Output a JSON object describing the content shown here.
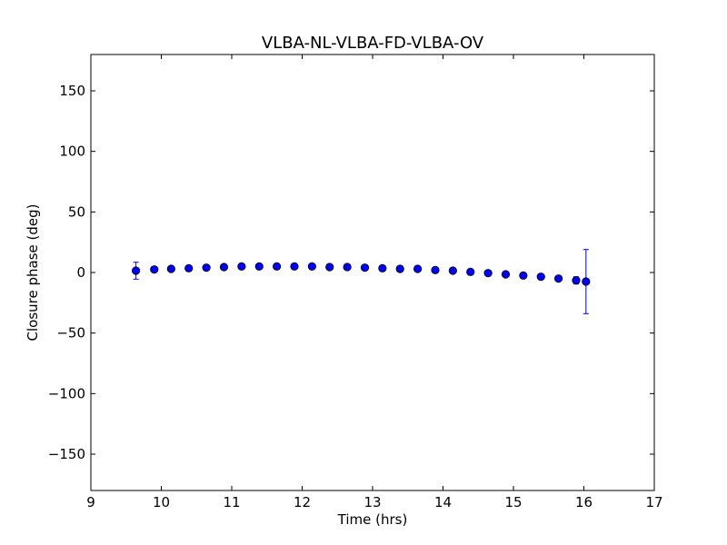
{
  "chart_data": {
    "type": "scatter",
    "title": "VLBA-NL-VLBA-FD-VLBA-OV",
    "xlabel": "Time (hrs)",
    "ylabel": "Closure phase (deg)",
    "xlim": [
      9,
      17
    ],
    "ylim": [
      -180,
      180
    ],
    "xticks": [
      9,
      10,
      11,
      12,
      13,
      14,
      15,
      16,
      17
    ],
    "yticks": [
      -150,
      -100,
      -50,
      0,
      50,
      100,
      150
    ],
    "xtick_labels": [
      "9",
      "10",
      "11",
      "12",
      "13",
      "14",
      "15",
      "16",
      "17"
    ],
    "ytick_labels": [
      "−150",
      "−100",
      "−50",
      "0",
      "50",
      "100",
      "150"
    ],
    "grid": false,
    "marker_color": "#0000ff",
    "errorbar_color": "#0000ff",
    "series": [
      {
        "x": [
          9.64,
          9.9,
          10.14,
          10.39,
          10.64,
          10.89,
          11.14,
          11.39,
          11.64,
          11.89,
          12.14,
          12.39,
          12.64,
          12.89,
          13.14,
          13.39,
          13.64,
          13.89,
          14.14,
          14.39,
          14.64,
          14.89,
          15.14,
          15.39,
          15.64,
          15.89,
          16.03
        ],
        "y": [
          1.5,
          2.5,
          3.0,
          3.5,
          4.0,
          4.5,
          5.0,
          5.0,
          5.0,
          5.0,
          5.0,
          4.5,
          4.5,
          4.0,
          3.5,
          3.0,
          3.0,
          2.0,
          1.5,
          0.5,
          -0.5,
          -1.5,
          -2.5,
          -3.5,
          -5.0,
          -6.5,
          -7.5
        ],
        "yerr": [
          7,
          1.5,
          1.5,
          1.5,
          1.5,
          1.5,
          1.5,
          1.5,
          1.5,
          1.5,
          1.5,
          1.5,
          1.5,
          1.5,
          1.5,
          1.5,
          1.5,
          1.5,
          1.5,
          1.5,
          1.5,
          1.5,
          1.5,
          1.5,
          1.5,
          3,
          26.5
        ]
      }
    ]
  }
}
